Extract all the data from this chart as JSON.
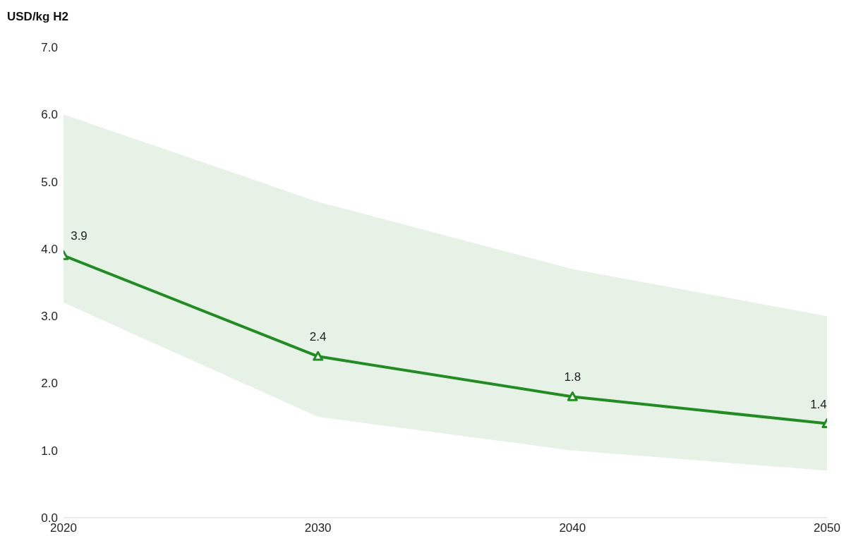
{
  "chart_data": {
    "type": "line",
    "ylabel": "USD/kg H2",
    "x": [
      2020,
      2030,
      2040,
      2050
    ],
    "series": [
      {
        "color": "#238b23",
        "values": [
          3.9,
          2.4,
          1.8,
          1.4
        ],
        "lower": [
          3.2,
          1.5,
          1.0,
          0.7
        ],
        "upper": [
          6.0,
          4.7,
          3.7,
          3.0
        ]
      }
    ],
    "xlim": [
      2020,
      2050
    ],
    "xticks": [
      2020,
      2030,
      2040,
      2050
    ],
    "ylim": [
      0,
      7
    ],
    "yticks": [
      {
        "value": 0,
        "label": "0.0"
      },
      {
        "value": 1,
        "label": "1.0"
      },
      {
        "value": 2,
        "label": "2.0"
      },
      {
        "value": 3,
        "label": "3.0"
      },
      {
        "value": 4,
        "label": "4.0"
      },
      {
        "value": 5,
        "label": "5.0"
      },
      {
        "value": 6,
        "label": "6.0"
      },
      {
        "value": 7,
        "label": "7.0"
      }
    ],
    "grid": false,
    "legend": false,
    "marker": "triangle",
    "line_style": "solid",
    "data_labels": true
  }
}
